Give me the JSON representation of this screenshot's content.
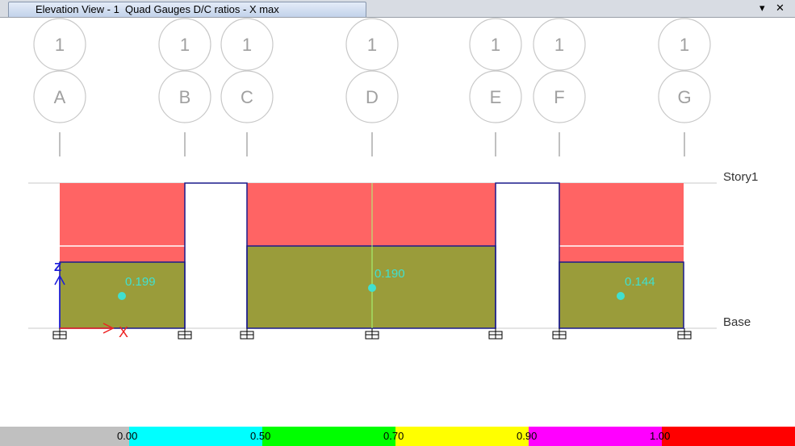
{
  "window": {
    "tab_title": "Elevation View - 1  Quad Gauges D/C ratios - X max",
    "dropdown_icon": "dropdown-arrow-icon",
    "close_icon": "close-icon"
  },
  "grid": {
    "row_label": "1",
    "columns": [
      "A",
      "B",
      "C",
      "D",
      "E",
      "F",
      "G"
    ]
  },
  "stories": {
    "top": "Story1",
    "bottom": "Base"
  },
  "gauges": [
    {
      "column_span": "A-B",
      "ratio": "0.199"
    },
    {
      "column_span": "C-E",
      "ratio": "0.190"
    },
    {
      "column_span": "F-G",
      "ratio": "0.144"
    }
  ],
  "axes": {
    "vertical": "Z",
    "horizontal": "X"
  },
  "legend": {
    "ticks": [
      "0.00",
      "0.50",
      "0.70",
      "0.90",
      "1.00"
    ],
    "colors": [
      "#c0c0c0",
      "#00ffff",
      "#00ff00",
      "#ffff00",
      "#ff00ff",
      "#ff0000"
    ]
  },
  "colors": {
    "stress_upper": "#ff6464",
    "stress_lower": "#9a9c3a",
    "frame_line": "#1a1a8c",
    "label_cyan": "#40e0d0",
    "bubble_gray": "#c8c8c8"
  }
}
